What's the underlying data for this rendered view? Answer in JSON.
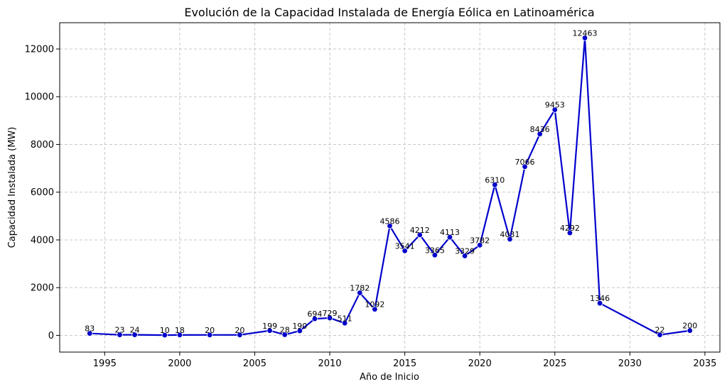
{
  "chart_data": {
    "type": "line",
    "title": "Evolución de la Capacidad Instalada de Energía Eólica en Latinoamérica",
    "xlabel": "Año de Inicio",
    "ylabel": "Capacidad Instalada (MW)",
    "xlim": [
      1992,
      2036
    ],
    "ylim": [
      -700,
      13100
    ],
    "xticks": [
      1995,
      2000,
      2005,
      2010,
      2015,
      2020,
      2025,
      2030,
      2035
    ],
    "yticks": [
      0,
      2000,
      4000,
      6000,
      8000,
      10000,
      12000
    ],
    "grid": true,
    "colors": {
      "series": "#0000cc",
      "grid": "#c8c8c8"
    },
    "series": [
      {
        "x": [
          1994,
          1996,
          1997,
          1999,
          2000,
          2002,
          2004,
          2006,
          2007,
          2008,
          2009,
          2010,
          2011,
          2012,
          2013,
          2014,
          2015,
          2016,
          2017,
          2018,
          2019,
          2020,
          2021,
          2022,
          2023,
          2024,
          2025,
          2026,
          2027,
          2028,
          2032,
          2034
        ],
        "values": [
          83,
          23,
          24,
          10,
          18,
          20,
          20,
          199,
          28,
          190,
          694,
          729,
          511,
          1782,
          1092,
          4586,
          3541,
          4212,
          3365,
          4113,
          3329,
          3782,
          6310,
          4031,
          7066,
          8436,
          9453,
          4292,
          12463,
          1346,
          22,
          200
        ],
        "labels": [
          "83",
          "23",
          "24",
          "10",
          "18",
          "20",
          "20",
          "199",
          "28",
          "190",
          "694",
          "729",
          "511",
          "1782",
          "1092",
          "4586",
          "3541",
          "4212",
          "3365",
          "4113",
          "3329",
          "3782",
          "6310",
          "4031",
          "7066",
          "8436",
          "9453",
          "4292",
          "12463",
          "1346",
          "22",
          "200"
        ]
      }
    ]
  }
}
